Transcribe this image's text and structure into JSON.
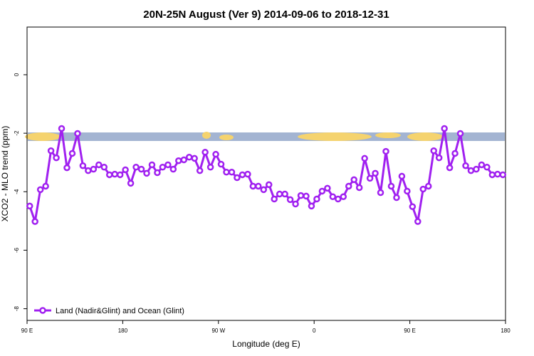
{
  "chart_data": {
    "type": "line",
    "title": "20N-25N August (Ver 9)   2014-09-06 to 2018-12-31",
    "x_label": "Longitude (deg E)",
    "y_label": "XCO2 - MLO trend (ppm)",
    "x": [
      92.5,
      97.5,
      102.5,
      107.5,
      112.5,
      117.5,
      122.5,
      127.5,
      132.5,
      137.5,
      142.5,
      147.5,
      152.5,
      157.5,
      162.5,
      167.5,
      172.5,
      177.5,
      182.5,
      187.5,
      192.5,
      197.5,
      202.5,
      207.5,
      212.5,
      217.5,
      222.5,
      227.5,
      232.5,
      237.5,
      242.5,
      247.5,
      252.5,
      257.5,
      262.5,
      267.5,
      272.5,
      277.5,
      282.5,
      287.5,
      292.5,
      297.5,
      302.5,
      307.5,
      312.5,
      317.5,
      322.5,
      327.5,
      332.5,
      337.5,
      342.5,
      347.5,
      352.5,
      357.5,
      362.5,
      367.5,
      372.5,
      377.5,
      382.5,
      387.5,
      392.5,
      397.5,
      402.5,
      407.5,
      412.5,
      417.5,
      422.5,
      427.5,
      432.5,
      437.5,
      442.5,
      447.5,
      452.5,
      457.5,
      462.5,
      467.5,
      472.5,
      477.5,
      482.5,
      487.5,
      492.5,
      497.5,
      502.5,
      507.5,
      512.5,
      517.5,
      522.5,
      527.5,
      532.5,
      537.5
    ],
    "series": [
      {
        "name": "Land (Nadir&Glint) and Ocean (Glint)",
        "color": "#a020f0",
        "values": [
          -4.49,
          -5.02,
          -3.93,
          -3.81,
          -2.6,
          -2.84,
          -1.84,
          -3.18,
          -2.69,
          -2.01,
          -3.11,
          -3.28,
          -3.23,
          -3.08,
          -3.16,
          -3.42,
          -3.4,
          -3.42,
          -3.25,
          -3.71,
          -3.16,
          -3.23,
          -3.37,
          -3.08,
          -3.35,
          -3.16,
          -3.08,
          -3.23,
          -2.94,
          -2.91,
          -2.82,
          -2.86,
          -3.28,
          -2.65,
          -3.16,
          -2.72,
          -3.06,
          -3.33,
          -3.33,
          -3.52,
          -3.42,
          -3.4,
          -3.81,
          -3.81,
          -3.93,
          -3.76,
          -4.25,
          -4.08,
          -4.08,
          -4.27,
          -4.42,
          -4.13,
          -4.15,
          -4.49,
          -4.25,
          -3.98,
          -3.88,
          -4.17,
          -4.25,
          -4.17,
          -3.81,
          -3.59,
          -3.86,
          -2.86,
          -3.54,
          -3.37,
          -4.03,
          -2.62,
          -3.81,
          -4.2,
          -3.47,
          -3.98,
          -4.51,
          -5.02,
          -3.91,
          -3.81,
          -2.6,
          -2.84,
          -1.84,
          -3.18,
          -2.69,
          -2.01,
          -3.11,
          -3.28,
          -3.23,
          -3.08,
          -3.16,
          -3.42,
          -3.4,
          -3.42
        ]
      }
    ],
    "xlim": [
      90,
      540
    ],
    "xticks": [
      {
        "value": 90,
        "label": "90 E"
      },
      180,
      {
        "value": 270,
        "label": "90 W"
      },
      {
        "value": 360,
        "label": "0"
      },
      {
        "value": 450,
        "label": "90 E"
      },
      {
        "value": 540,
        "label": "180"
      }
    ],
    "ylim": [
      -8.4,
      1.63
    ],
    "yticks": [
      0,
      -2,
      -4,
      -6,
      -8
    ],
    "legend": "bottom-left"
  }
}
